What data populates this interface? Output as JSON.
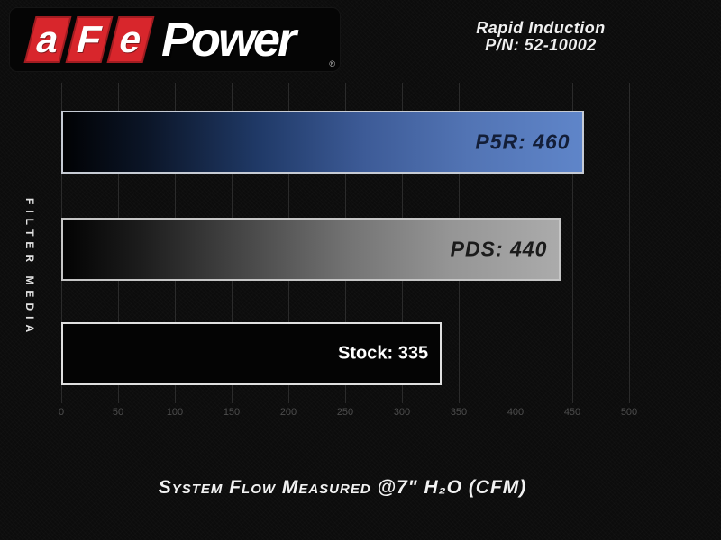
{
  "brand": {
    "logo_letters": [
      "a",
      "F",
      "e"
    ],
    "logo_word": "Power",
    "registered_symbol": "®",
    "brand_red": "#d8262c"
  },
  "header": {
    "line1": "Rapid Induction",
    "line2": "P/N: 52-10002",
    "text_color": "#f0f0f0"
  },
  "chart_data": {
    "type": "bar",
    "orientation": "horizontal",
    "title": "",
    "ylabel": "FILTER MEDIA",
    "xlabel": "System Flow Measured @7\" H₂O (CFM)",
    "categories": [
      "P5R",
      "PDS",
      "Stock"
    ],
    "values": [
      460,
      440,
      335
    ],
    "series": [
      {
        "name": "P5R",
        "value": 460,
        "label": "P5R: 460",
        "bar_style": "blue-gradient",
        "end_color": "#5f85c9",
        "label_color": "#131e38"
      },
      {
        "name": "PDS",
        "value": 440,
        "label": "PDS: 440",
        "bar_style": "gray-gradient",
        "end_color": "#ababab",
        "label_color": "#1b1b1b"
      },
      {
        "name": "Stock",
        "value": 335,
        "label": "Stock: 335",
        "bar_style": "black-outlined",
        "end_color": "#040404",
        "label_color": "#ffffff"
      }
    ],
    "xlim": [
      0,
      500
    ],
    "x_ticks": [
      "0",
      "50",
      "100",
      "150",
      "200",
      "250",
      "300",
      "350",
      "400",
      "450",
      "500"
    ],
    "grid": true,
    "legend": "none"
  },
  "footer": {
    "caption": "System Flow Measured @7\" H₂O (CFM)"
  },
  "colors": {
    "background": "#0c0c0c",
    "gridline": "#2b2b2b",
    "tick_text": "#4d4d4d",
    "header_text": "#f0f0f0",
    "axis_label_text": "#e2e2e2"
  }
}
